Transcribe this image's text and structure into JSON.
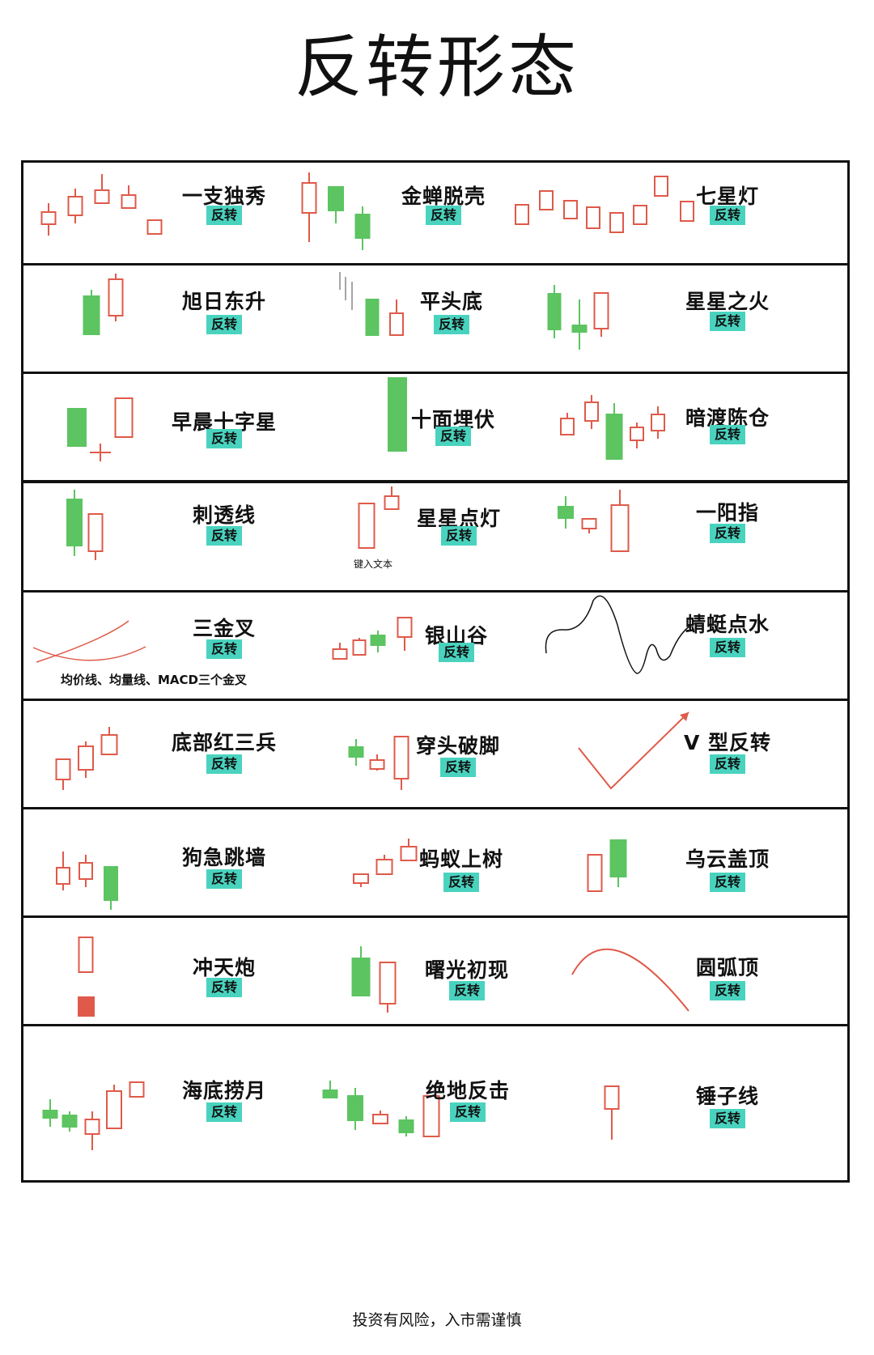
{
  "title": "反转形态",
  "tag_label": "反转",
  "colors": {
    "bull": "#5cc461",
    "bear": "#df5a4a",
    "tag": "#49d3bf",
    "border": "#111111"
  },
  "rows": [
    {
      "patterns": [
        {
          "name": "一支独秀",
          "tag": "反转"
        },
        {
          "name": "金蝉脱壳",
          "tag": "反转"
        },
        {
          "name": "七星灯",
          "tag": "反转"
        }
      ]
    },
    {
      "patterns": [
        {
          "name": "旭日东升",
          "tag": "反转"
        },
        {
          "name": "平头底",
          "tag": "反转"
        },
        {
          "name": "星星之火",
          "tag": "反转"
        }
      ]
    },
    {
      "patterns": [
        {
          "name": "早晨十字星",
          "tag": "反转"
        },
        {
          "name": "十面埋伏",
          "tag": "反转"
        },
        {
          "name": "暗渡陈仓",
          "tag": "反转"
        }
      ]
    },
    {
      "patterns": [
        {
          "name": "刺透线",
          "tag": "反转"
        },
        {
          "name": "星星点灯",
          "tag": "反转",
          "note": "键入文本"
        },
        {
          "name": "一阳指",
          "tag": "反转"
        }
      ]
    },
    {
      "patterns": [
        {
          "name": "三金叉",
          "tag": "反转",
          "note": "均价线、均量线、MACD三个金叉"
        },
        {
          "name": "银山谷",
          "tag": "反转"
        },
        {
          "name": "蜻蜓点水",
          "tag": "反转"
        }
      ]
    },
    {
      "patterns": [
        {
          "name": "底部红三兵",
          "tag": "反转"
        },
        {
          "name": "穿头破脚",
          "tag": "反转"
        },
        {
          "name": "V 型反转",
          "tag": "反转"
        }
      ]
    },
    {
      "patterns": [
        {
          "name": "狗急跳墙",
          "tag": "反转"
        },
        {
          "name": "蚂蚁上树",
          "tag": "反转"
        },
        {
          "name": "乌云盖顶",
          "tag": "反转"
        }
      ]
    },
    {
      "patterns": [
        {
          "name": "冲天炮",
          "tag": "反转"
        },
        {
          "name": "曙光初现",
          "tag": "反转"
        },
        {
          "name": "圆弧顶",
          "tag": "反转"
        }
      ]
    },
    {
      "patterns": [
        {
          "name": "海底捞月",
          "tag": "反转"
        },
        {
          "name": "绝地反击",
          "tag": "反转"
        },
        {
          "name": "锤子线",
          "tag": "反转"
        }
      ]
    }
  ],
  "disclaimer": "投资有风险，入市需谨慎"
}
